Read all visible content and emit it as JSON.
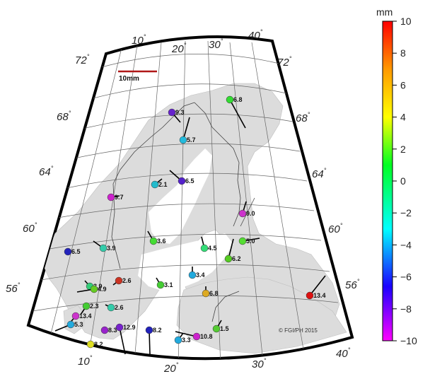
{
  "colorbar": {
    "unit": "mm",
    "ticks": [
      "10",
      "8",
      "6",
      "4",
      "2",
      "0",
      "−2",
      "−4",
      "−6",
      "−8",
      "−10"
    ],
    "stops": [
      "#ff00ff",
      "#1a00ff",
      "#00ffff",
      "#00ff22",
      "#ffff00",
      "#ff9900",
      "#ff0000"
    ]
  },
  "scale_bar": {
    "label": "10mm"
  },
  "copyright": "© FGI/PH 2015",
  "lon_labels_top": [
    "10",
    "20",
    "30",
    "40"
  ],
  "lon_labels_bottom": [
    "10",
    "20",
    "30",
    "40"
  ],
  "lat_labels_left": [
    "72",
    "68",
    "64",
    "60",
    "56"
  ],
  "lat_labels_right": [
    "72",
    "68",
    "64",
    "60",
    "56"
  ],
  "degree_symbol": "°",
  "stations": [
    {
      "label": "6.8",
      "color": "#33dd33"
    },
    {
      "label": "9.3",
      "color": "#6622cc"
    },
    {
      "label": "5.7",
      "color": "#22bbdd"
    },
    {
      "label": "6.5",
      "color": "#5522cc"
    },
    {
      "label": "2.1",
      "color": "#22bbcc"
    },
    {
      "label": "9.7",
      "color": "#cc22cc"
    },
    {
      "label": "9.0",
      "color": "#cc33cc"
    },
    {
      "label": "5.0",
      "color": "#55dd33"
    },
    {
      "label": "3.6",
      "color": "#44dd33"
    },
    {
      "label": "6.5",
      "color": "#2222bb"
    },
    {
      "label": "3.9",
      "color": "#33ccaa"
    },
    {
      "label": "4.5",
      "color": "#33dd77"
    },
    {
      "label": "6.2",
      "color": "#55cc22"
    },
    {
      "label": "3.4",
      "color": "#22aadd"
    },
    {
      "label": "3.1",
      "color": "#44cc33"
    },
    {
      "label": "2.6",
      "color": "#cc3322"
    },
    {
      "label": "3.9",
      "color": "#33cc77"
    },
    {
      "label": "4.9",
      "color": "#66cc22"
    },
    {
      "label": "6.8",
      "color": "#ddaa22"
    },
    {
      "label": "13.4",
      "color": "#dd1111"
    },
    {
      "label": "2.3",
      "color": "#44cc33"
    },
    {
      "label": "2.6",
      "color": "#33ccaa"
    },
    {
      "label": "13.4",
      "color": "#cc33cc"
    },
    {
      "label": "5.3",
      "color": "#22aadd"
    },
    {
      "label": "8.3",
      "color": "#9922cc"
    },
    {
      "label": "12.9",
      "color": "#7722cc"
    },
    {
      "label": "8.2",
      "color": "#2222bb"
    },
    {
      "label": "3.3",
      "color": "#22aadd"
    },
    {
      "label": "10.8",
      "color": "#cc22cc"
    },
    {
      "label": "1.5",
      "color": "#55cc33"
    },
    {
      "label": "8.2",
      "color": "#dddd22"
    }
  ]
}
